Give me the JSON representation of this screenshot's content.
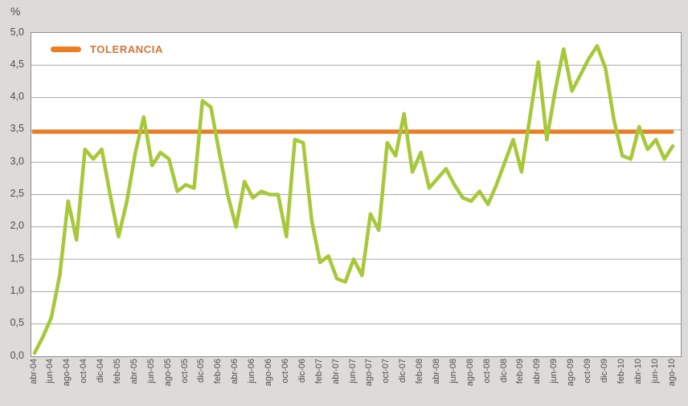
{
  "page": {
    "unit_label": "%"
  },
  "legend": {
    "label": "TOLERANCIA",
    "color": "#ec7d23"
  },
  "colors": {
    "background": "#dcdbd9",
    "plot_background": "#ffffff",
    "plot_border": "#8e8e8e",
    "grid": "#a6a6a6",
    "series_green": "#a6c839",
    "tolerance_orange": "#ec7d23",
    "axis_text": "#4f4f4f"
  },
  "chart_data": {
    "type": "line",
    "title": "",
    "xlabel": "",
    "ylabel": "%",
    "ylim": [
      0,
      5
    ],
    "ytick_step": 0.5,
    "ytick_labels": [
      "5,0",
      "4,5",
      "4,0",
      "3,5",
      "3,0",
      "2,5",
      "2,0",
      "1,5",
      "1,0",
      "0,5",
      "0,0"
    ],
    "decimal_separator": ",",
    "grid": true,
    "legend_position": "top-left-inside",
    "xtick_every_n_months": 2,
    "xtick_labels_shown": [
      "abr-04",
      "jun-04",
      "ago-04",
      "oct-04",
      "dic-04",
      "feb-05",
      "abr-05",
      "jun-05",
      "ago-05",
      "oct-05",
      "dic-05",
      "feb-06",
      "abr-06",
      "jun-06",
      "ago-06",
      "oct-06",
      "dic-06",
      "feb-07",
      "abr-07",
      "jun-07",
      "ago-07",
      "oct-07",
      "dic-07",
      "feb-08",
      "abr-08",
      "jun-08",
      "ago-08",
      "oct-08",
      "dic-08",
      "feb-09",
      "abr-09",
      "jun-09",
      "ago-09",
      "oct-09",
      "dic-09",
      "feb-10",
      "abr-10",
      "jun-10",
      "ago-10"
    ],
    "months": [
      "abr-04",
      "may-04",
      "jun-04",
      "jul-04",
      "ago-04",
      "sep-04",
      "oct-04",
      "nov-04",
      "dic-04",
      "ene-05",
      "feb-05",
      "mar-05",
      "abr-05",
      "may-05",
      "jun-05",
      "jul-05",
      "ago-05",
      "sep-05",
      "oct-05",
      "nov-05",
      "dic-05",
      "ene-06",
      "feb-06",
      "mar-06",
      "abr-06",
      "may-06",
      "jun-06",
      "jul-06",
      "ago-06",
      "sep-06",
      "oct-06",
      "nov-06",
      "dic-06",
      "ene-07",
      "feb-07",
      "mar-07",
      "abr-07",
      "may-07",
      "jun-07",
      "jul-07",
      "ago-07",
      "sep-07",
      "oct-07",
      "nov-07",
      "dic-07",
      "ene-08",
      "feb-08",
      "mar-08",
      "abr-08",
      "may-08",
      "jun-08",
      "jul-08",
      "ago-08",
      "sep-08",
      "oct-08",
      "nov-08",
      "dic-08",
      "ene-09",
      "feb-09",
      "mar-09",
      "abr-09",
      "may-09",
      "jun-09",
      "jul-09",
      "ago-09",
      "sep-09",
      "oct-09",
      "nov-09",
      "dic-09",
      "ene-10",
      "feb-10",
      "mar-10",
      "abr-10",
      "may-10",
      "jun-10",
      "jul-10",
      "ago-10"
    ],
    "series": [
      {
        "name": "serie",
        "color": "#a6c839",
        "values": [
          0.05,
          0.3,
          0.6,
          1.25,
          2.4,
          1.8,
          3.2,
          3.05,
          3.2,
          2.5,
          1.85,
          2.4,
          3.15,
          3.7,
          2.95,
          3.15,
          3.05,
          2.55,
          2.65,
          2.6,
          3.95,
          3.85,
          3.15,
          2.5,
          2.0,
          2.7,
          2.45,
          2.55,
          2.5,
          2.5,
          1.85,
          3.35,
          3.3,
          2.1,
          1.45,
          1.55,
          1.2,
          1.15,
          1.5,
          1.25,
          2.2,
          1.95,
          3.3,
          3.1,
          3.75,
          2.85,
          3.15,
          2.6,
          2.75,
          2.9,
          2.65,
          2.45,
          2.4,
          2.55,
          2.35,
          2.65,
          3.0,
          3.35,
          2.85,
          3.7,
          4.55,
          3.35,
          4.1,
          4.75,
          4.1,
          4.35,
          4.6,
          4.8,
          4.45,
          3.65,
          3.1,
          3.05,
          3.55,
          3.2,
          3.35,
          3.05,
          3.25
        ]
      }
    ],
    "tolerance_line": {
      "name": "TOLERANCIA",
      "value": 3.47,
      "color": "#ec7d23"
    }
  }
}
